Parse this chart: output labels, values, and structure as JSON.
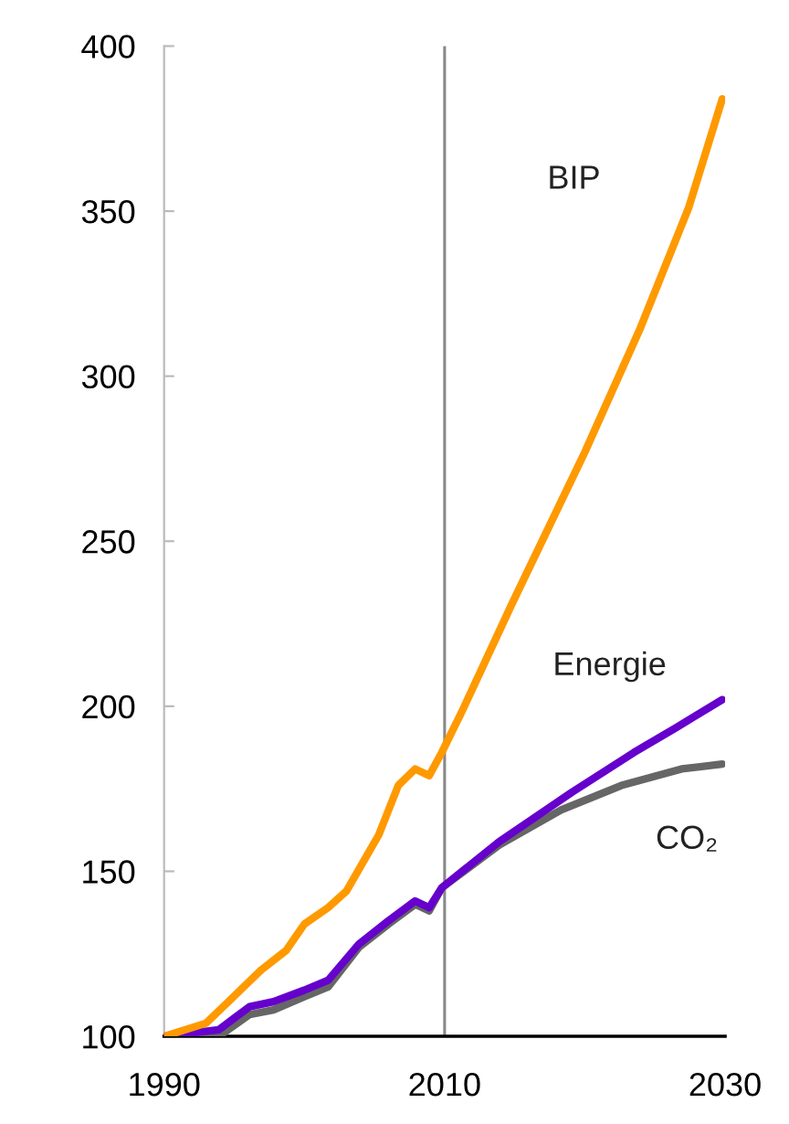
{
  "chart_data": {
    "type": "line",
    "xlim": [
      1990,
      2030
    ],
    "xticks": [
      1990,
      2010,
      2030
    ],
    "ylim": [
      100,
      400
    ],
    "yticks": [
      100,
      150,
      200,
      250,
      300,
      350,
      400
    ],
    "grid": false,
    "legend": false,
    "marker": "none",
    "line_style": "solid",
    "ref_lines": [
      {
        "axis": "x",
        "value": 2010,
        "color": "#888888"
      }
    ],
    "series": [
      {
        "name": "BIP",
        "color": "#ff9900",
        "x": [
          1990,
          1993,
          1995.2,
          1996.9,
          1998.7,
          2000,
          2001.7,
          2003,
          2005.3,
          2006.7,
          2007.9,
          2008.9,
          2009.8,
          2011.3,
          2014.8,
          2020,
          2023.9,
          2027.4,
          2029.8
        ],
        "values": [
          100,
          104,
          113,
          120,
          126,
          134,
          139,
          144,
          161,
          176,
          181,
          179,
          186,
          199,
          231,
          277,
          314,
          351,
          384
        ]
      },
      {
        "name": "Energie",
        "color": "#6600cc",
        "x": [
          1990,
          1993.9,
          1996.1,
          1997.8,
          2000,
          2001.7,
          2003.9,
          2006,
          2007.9,
          2008.9,
          2009.8,
          2013.9,
          2019.1,
          2023.5,
          2026.5,
          2029.8
        ],
        "values": [
          100,
          102,
          109,
          110.5,
          114,
          117,
          128,
          135,
          141,
          139,
          145,
          159,
          174,
          186,
          193.5,
          202
        ]
      },
      {
        "name": "CO₂",
        "color": "#666666",
        "x": [
          1990,
          1993.9,
          1996.1,
          1997.8,
          2000,
          2001.7,
          2003.9,
          2006,
          2007.9,
          2008.9,
          2009.8,
          2013.9,
          2018.3,
          2022.6,
          2026.9,
          2029.8
        ],
        "values": [
          100,
          100,
          106.6,
          108,
          112,
          115,
          127,
          134,
          140,
          138,
          145,
          158,
          168.6,
          176,
          181,
          182.5
        ]
      }
    ]
  }
}
